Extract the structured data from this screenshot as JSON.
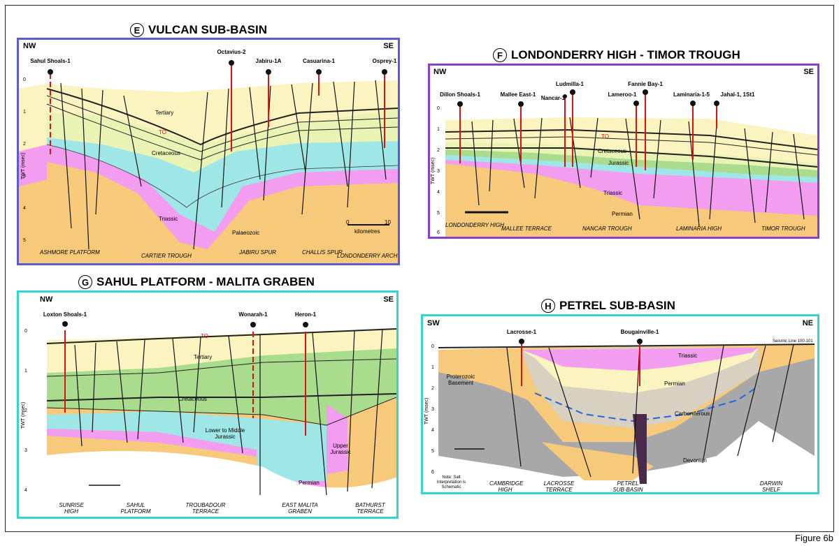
{
  "figure_label": "Figure 6b",
  "axis_title": "TWT (msec)",
  "panels": {
    "E": {
      "letter": "E",
      "title": "VULCAN SUB-BASIN",
      "dir_left": "NW",
      "dir_right": "SE",
      "border_color": "#5b5bd6",
      "wells": [
        "Sahul Shoals-1",
        "Octavius-2",
        "Jabiru-1A",
        "Casuarina-1",
        "Osprey-1"
      ],
      "axis_ticks": [
        "0",
        "1",
        "2",
        "3",
        "4",
        "5"
      ],
      "units": [
        "Tertiary",
        "TO",
        "Cretaceous",
        "Triassic",
        "Palaeozoic"
      ],
      "scale_label": "kilometres",
      "scale_ticks": [
        "0",
        "10"
      ],
      "locations": [
        "ASHMORE PLATFORM",
        "CARTIER TROUGH",
        "JABIRU SPUR",
        "CHALLIS SPUR",
        "LONDONDERRY ARCH"
      ]
    },
    "F": {
      "letter": "F",
      "title": "LONDONDERRY HIGH - TIMOR TROUGH",
      "dir_left": "NW",
      "dir_right": "SE",
      "border_color": "#8a3fc9",
      "wells": [
        "Dillon Shoals-1",
        "Mallee East-1",
        "Nancar-1",
        "Ludmilla-1",
        "Lameroo-1",
        "Fannie Bay-1",
        "Laminaria-1-5",
        "Jahal-1, 1St1"
      ],
      "axis_ticks": [
        "0",
        "1",
        "2",
        "3",
        "4",
        "5",
        "6"
      ],
      "units": [
        "Cretaceous",
        "Jurassic",
        "Triassic",
        "Permian",
        "TO"
      ],
      "locations": [
        "LONDONDERRY HIGH",
        "MALLEE TERRACE",
        "NANCAR TROUGH",
        "LAMINARIA HIGH",
        "TIMOR TROUGH"
      ]
    },
    "G": {
      "letter": "G",
      "title": "SAHUL PLATFORM - MALITA GRABEN",
      "dir_left": "NW",
      "dir_right": "SE",
      "border_color": "#33d6cf",
      "wells": [
        "Loxton Shoals-1",
        "Wonarah-1",
        "Heron-1"
      ],
      "axis_ticks": [
        "0",
        "1",
        "2",
        "3",
        "4"
      ],
      "units": [
        "Tertiary",
        "TO",
        "Cretaceous",
        "Lower to Middle Jurassic",
        "Upper Jurassic",
        "Permian"
      ],
      "locations": [
        "SUNRISE HIGH",
        "SAHUL PLATFORM",
        "TROUBADOUR TERRACE",
        "EAST MALITA GRABEN",
        "BATHURST TERRACE"
      ]
    },
    "H": {
      "letter": "H",
      "title": "PETREL SUB-BASIN",
      "dir_left": "SW",
      "dir_right": "NE",
      "border_color": "#33d6cf",
      "wells": [
        "Lacrosse-1",
        "Bougainville-1"
      ],
      "axis_ticks": [
        "0",
        "1",
        "2",
        "3",
        "4",
        "5",
        "6"
      ],
      "seismic_line": "Seismic Line 100-101",
      "units": [
        "Triassic",
        "Permian",
        "Carboniferous",
        "Devonian",
        "Proterozoic Basement"
      ],
      "note": "Note: Salt Interpretation is Schematic",
      "locations": [
        "CAMBRIDGE HIGH",
        "LACROSSE TERRACE",
        "PETREL SUB-BASIN",
        "DARWIN SHELF"
      ]
    }
  },
  "colors": {
    "tertiary": "#fbf4c0",
    "cretaceous_light": "#e9f3b3",
    "cretaceous": "#a9dc8c",
    "jurassic": "#9fe6e6",
    "triassic": "#f29df0",
    "palaeozoic": "#f7c97a",
    "basement": "#a8a8a8",
    "well_red": "#e01010",
    "fault": "#111111"
  }
}
